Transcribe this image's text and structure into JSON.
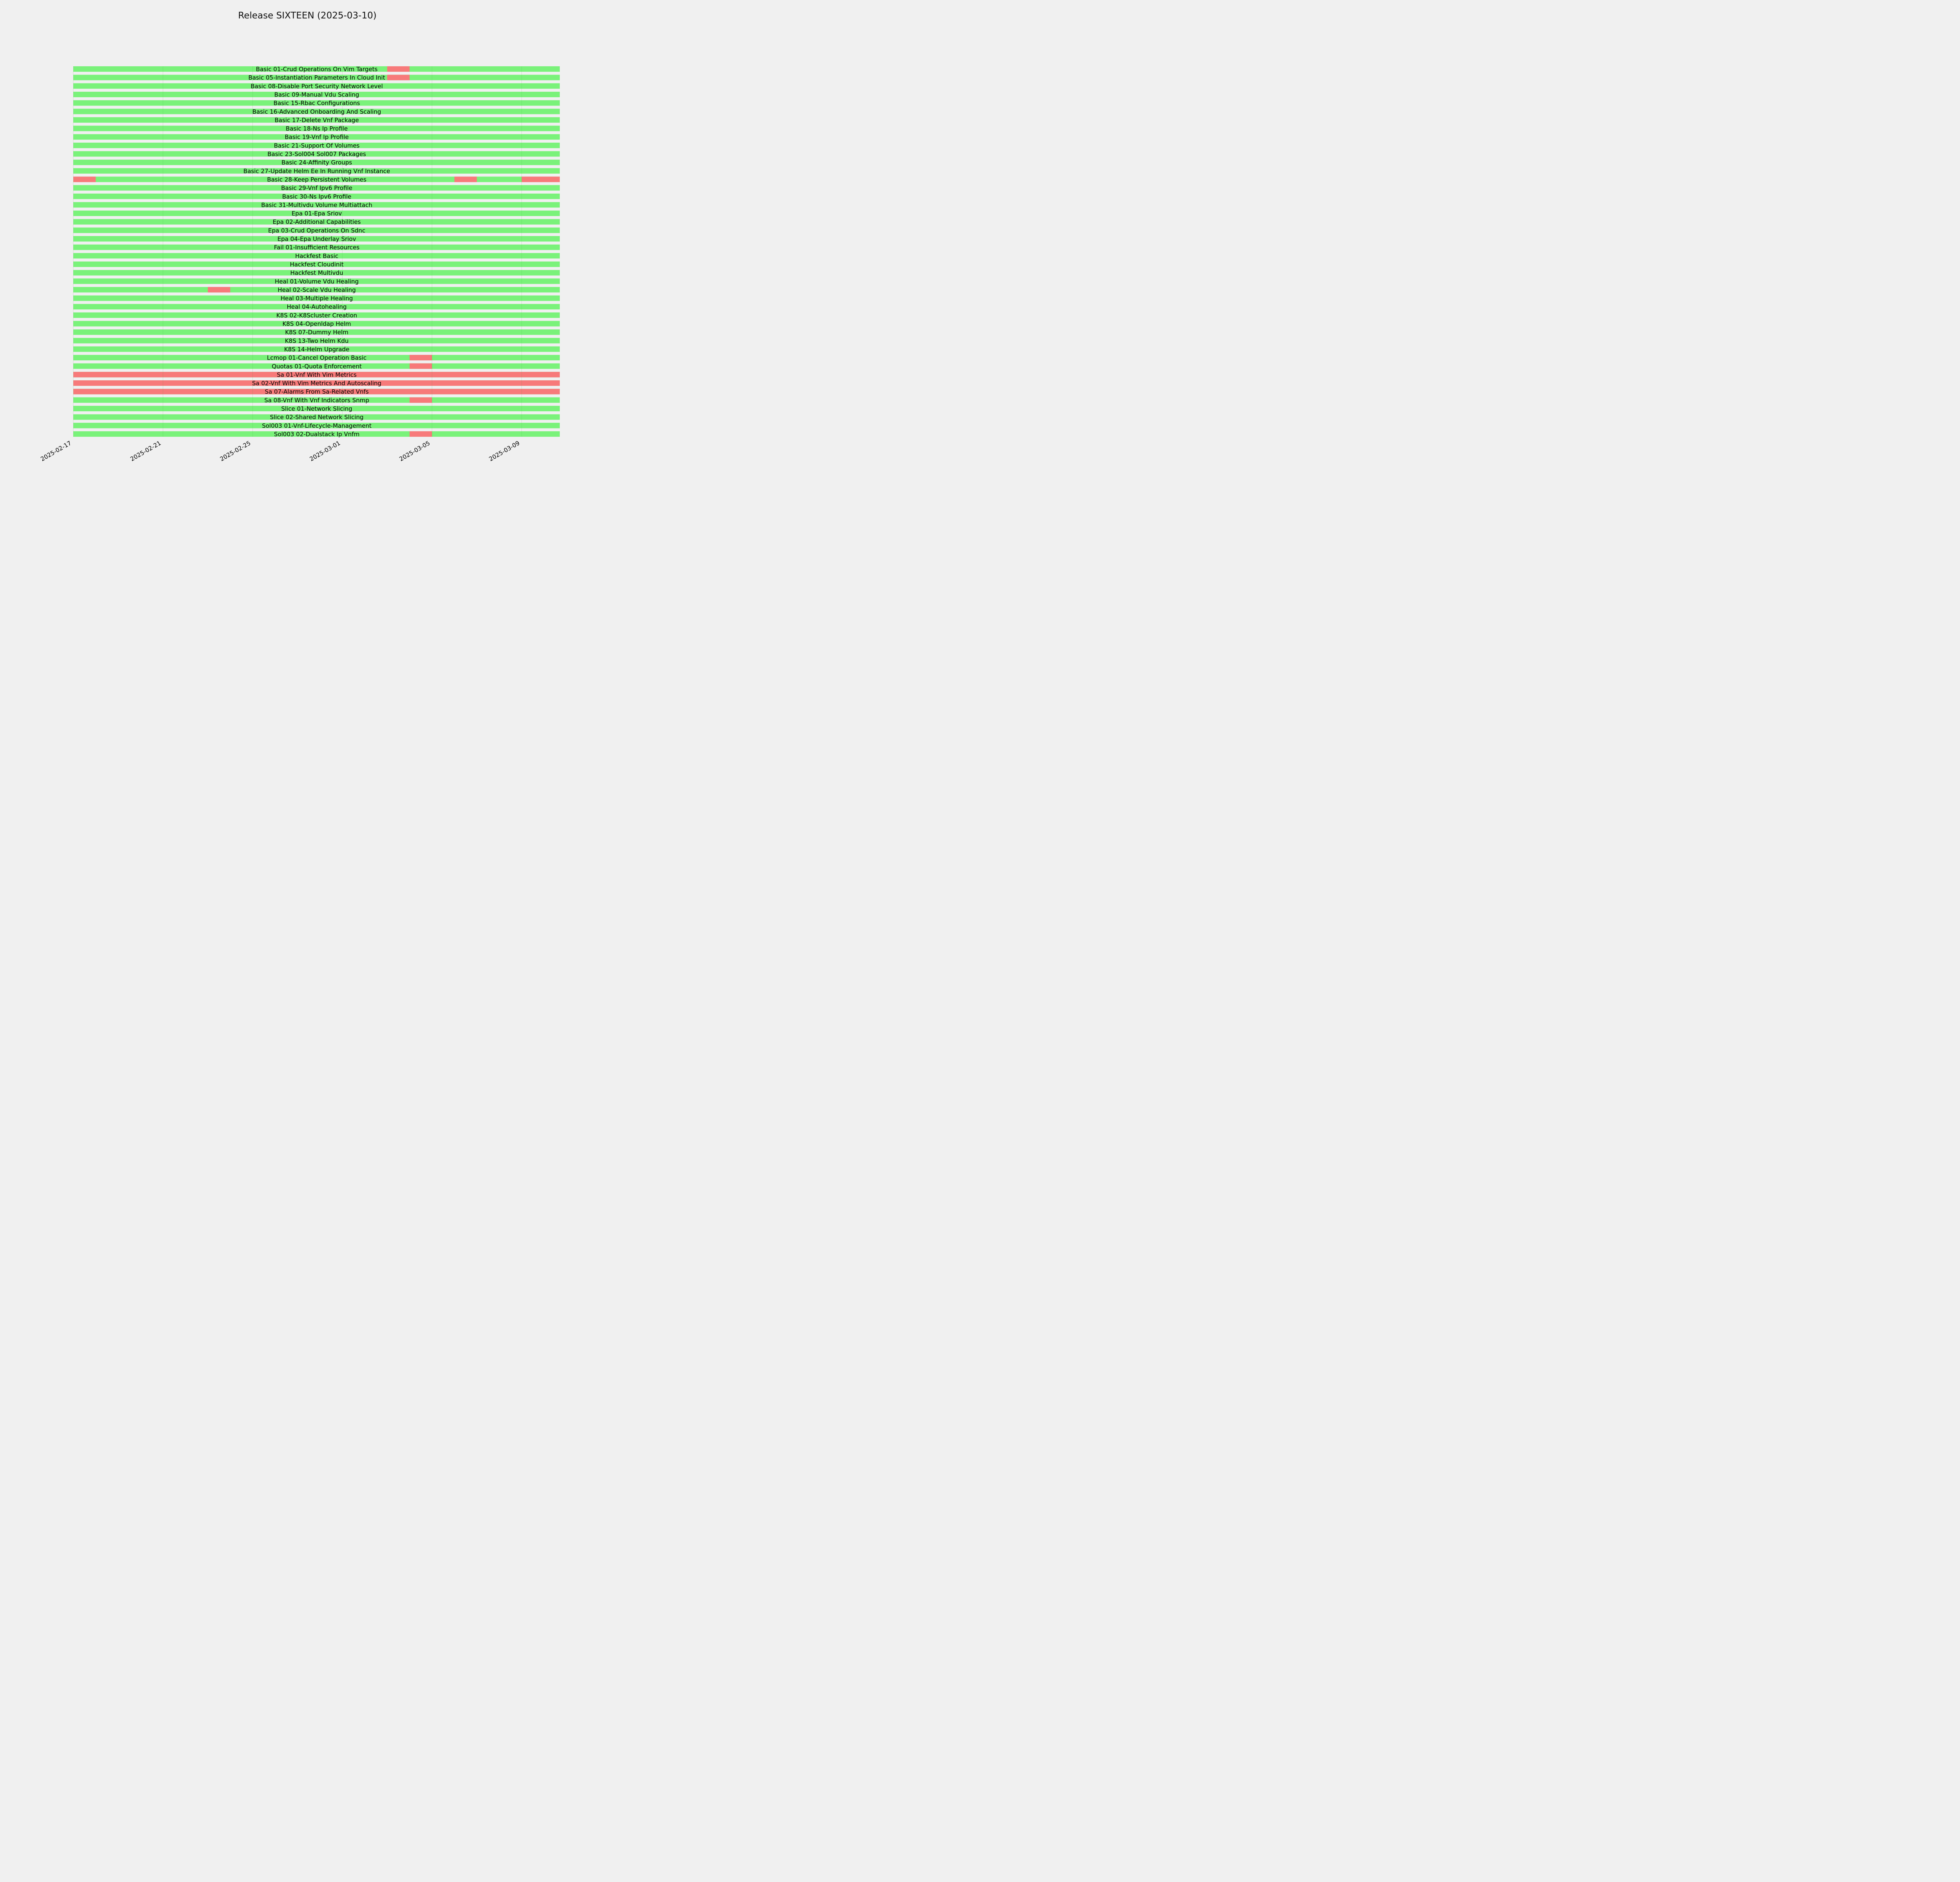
{
  "chart_data": {
    "type": "timeline",
    "title": "Release SIXTEEN (2025-03-10)",
    "x_ticks": [
      "2025-02-17",
      "2025-02-21",
      "2025-02-25",
      "2025-03-01",
      "2025-03-05",
      "2025-03-09"
    ],
    "xlim": [
      "2025-02-17",
      "2025-03-10T16:48"
    ],
    "colors": {
      "pass": "#7af27a",
      "fail": "#f77a7a",
      "background": "#f0f0f0"
    },
    "rows": [
      {
        "name": "Basic 01-Crud Operations On Vim Targets",
        "fail_periods": [
          [
            "2025-03-03",
            "2025-03-04"
          ]
        ]
      },
      {
        "name": "Basic 05-Instantiation Parameters In Cloud Init",
        "fail_periods": [
          [
            "2025-03-03",
            "2025-03-04"
          ]
        ]
      },
      {
        "name": "Basic 08-Disable Port Security Network Level",
        "fail_periods": []
      },
      {
        "name": "Basic 09-Manual Vdu Scaling",
        "fail_periods": []
      },
      {
        "name": "Basic 15-Rbac Configurations",
        "fail_periods": []
      },
      {
        "name": "Basic 16-Advanced Onboarding And Scaling",
        "fail_periods": []
      },
      {
        "name": "Basic 17-Delete Vnf Package",
        "fail_periods": []
      },
      {
        "name": "Basic 18-Ns Ip Profile",
        "fail_periods": []
      },
      {
        "name": "Basic 19-Vnf Ip Profile",
        "fail_periods": []
      },
      {
        "name": "Basic 21-Support Of Volumes",
        "fail_periods": []
      },
      {
        "name": "Basic 23-Sol004 Sol007 Packages",
        "fail_periods": []
      },
      {
        "name": "Basic 24-Affinity Groups",
        "fail_periods": []
      },
      {
        "name": "Basic 27-Update Helm Ee In Running Vnf Instance",
        "fail_periods": []
      },
      {
        "name": "Basic 28-Keep Persistent Volumes",
        "fail_periods": [
          [
            "2025-02-17",
            "2025-02-18"
          ],
          [
            "2025-03-06",
            "2025-03-07"
          ],
          [
            "2025-03-09",
            "2025-03-10T16:48"
          ]
        ]
      },
      {
        "name": "Basic 29-Vnf Ipv6 Profile",
        "fail_periods": []
      },
      {
        "name": "Basic 30-Ns Ipv6 Profile",
        "fail_periods": []
      },
      {
        "name": "Basic 31-Multivdu Volume Multiattach",
        "fail_periods": []
      },
      {
        "name": "Epa 01-Epa Sriov",
        "fail_periods": []
      },
      {
        "name": "Epa 02-Additional Capabilities",
        "fail_periods": []
      },
      {
        "name": "Epa 03-Crud Operations On Sdnc",
        "fail_periods": []
      },
      {
        "name": "Epa 04-Epa Underlay Sriov",
        "fail_periods": []
      },
      {
        "name": "Fail 01-Insufficient Resources",
        "fail_periods": []
      },
      {
        "name": "Hackfest Basic",
        "fail_periods": []
      },
      {
        "name": "Hackfest Cloudinit",
        "fail_periods": []
      },
      {
        "name": "Hackfest Multivdu",
        "fail_periods": []
      },
      {
        "name": "Heal 01-Volume Vdu Healing",
        "fail_periods": []
      },
      {
        "name": "Heal 02-Scale Vdu Healing",
        "fail_periods": [
          [
            "2025-02-23",
            "2025-02-24"
          ]
        ]
      },
      {
        "name": "Heal 03-Multiple Healing",
        "fail_periods": []
      },
      {
        "name": "Heal 04-Autohealing",
        "fail_periods": []
      },
      {
        "name": "K8S 02-K8Scluster Creation",
        "fail_periods": []
      },
      {
        "name": "K8S 04-Openldap Helm",
        "fail_periods": []
      },
      {
        "name": "K8S 07-Dummy Helm",
        "fail_periods": []
      },
      {
        "name": "K8S 13-Two Helm Kdu",
        "fail_periods": []
      },
      {
        "name": "K8S 14-Helm Upgrade",
        "fail_periods": []
      },
      {
        "name": "Lcmop 01-Cancel Operation Basic",
        "fail_periods": [
          [
            "2025-03-04",
            "2025-03-05"
          ]
        ]
      },
      {
        "name": "Quotas 01-Quota Enforcement",
        "fail_periods": [
          [
            "2025-03-04",
            "2025-03-05"
          ]
        ]
      },
      {
        "name": "Sa 01-Vnf With Vim Metrics",
        "fail_periods": [
          [
            "2025-02-17",
            "2025-03-10T16:48"
          ]
        ]
      },
      {
        "name": "Sa 02-Vnf With Vim Metrics And Autoscaling",
        "fail_periods": [
          [
            "2025-02-17",
            "2025-03-10T16:48"
          ]
        ]
      },
      {
        "name": "Sa 07-Alarms From Sa-Related Vnfs",
        "fail_periods": [
          [
            "2025-02-17",
            "2025-03-10T16:48"
          ]
        ]
      },
      {
        "name": "Sa 08-Vnf With Vnf Indicators Snmp",
        "fail_periods": [
          [
            "2025-03-04",
            "2025-03-05"
          ]
        ]
      },
      {
        "name": "Slice 01-Network Slicing",
        "fail_periods": []
      },
      {
        "name": "Slice 02-Shared Network Slicing",
        "fail_periods": []
      },
      {
        "name": "Sol003 01-Vnf-Lifecycle-Management",
        "fail_periods": []
      },
      {
        "name": "Sol003 02-Dualstack Ip Vnfm",
        "fail_periods": [
          [
            "2025-03-04",
            "2025-03-05"
          ]
        ]
      }
    ]
  }
}
